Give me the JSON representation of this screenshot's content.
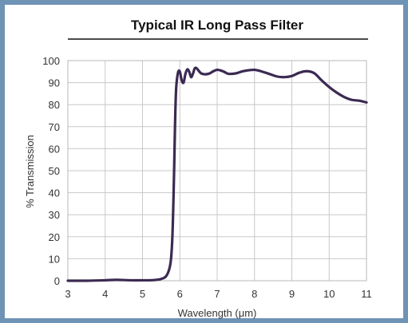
{
  "chart_data": {
    "type": "line",
    "title": "Typical IR Long Pass Filter",
    "xlabel": "Wavelength (μm)",
    "ylabel": "% Transmission",
    "xlim": [
      3,
      11
    ],
    "ylim": [
      0,
      100
    ],
    "xticks": [
      3,
      4,
      5,
      6,
      7,
      8,
      9,
      10,
      11
    ],
    "yticks": [
      0,
      10,
      20,
      30,
      40,
      50,
      60,
      70,
      80,
      90,
      100
    ],
    "grid": true,
    "legend": "none",
    "colors": {
      "line": "#3b2a52",
      "grid": "#c8c8c8",
      "frame": "#6f93b5"
    },
    "series": [
      {
        "x": [
          3.0,
          3.5,
          4.0,
          4.3,
          4.7,
          5.0,
          5.3,
          5.5,
          5.65,
          5.75,
          5.8,
          5.84,
          5.87,
          5.9,
          5.95,
          6.0,
          6.05,
          6.1,
          6.15,
          6.2,
          6.25,
          6.3,
          6.35,
          6.4,
          6.45,
          6.5,
          6.55,
          6.6,
          6.7,
          6.8,
          6.9,
          7.0,
          7.1,
          7.2,
          7.3,
          7.5,
          7.7,
          8.0,
          8.3,
          8.6,
          8.8,
          9.0,
          9.2,
          9.4,
          9.6,
          9.8,
          10.0,
          10.2,
          10.4,
          10.6,
          10.8,
          11.0
        ],
        "y": [
          0,
          0,
          0.2,
          0.4,
          0.2,
          0.2,
          0.3,
          0.8,
          2.5,
          8,
          20,
          45,
          70,
          87,
          94.5,
          95,
          91,
          90,
          94,
          96,
          95,
          92.5,
          94,
          96.5,
          96.5,
          95.5,
          94.5,
          94,
          93.8,
          94.2,
          95.2,
          95.8,
          95.5,
          94.8,
          94,
          94.2,
          95.2,
          95.8,
          94.5,
          92.8,
          92.5,
          93,
          94.5,
          95.2,
          94.3,
          91,
          88,
          85.5,
          83.5,
          82.2,
          81.8,
          81
        ]
      }
    ]
  }
}
